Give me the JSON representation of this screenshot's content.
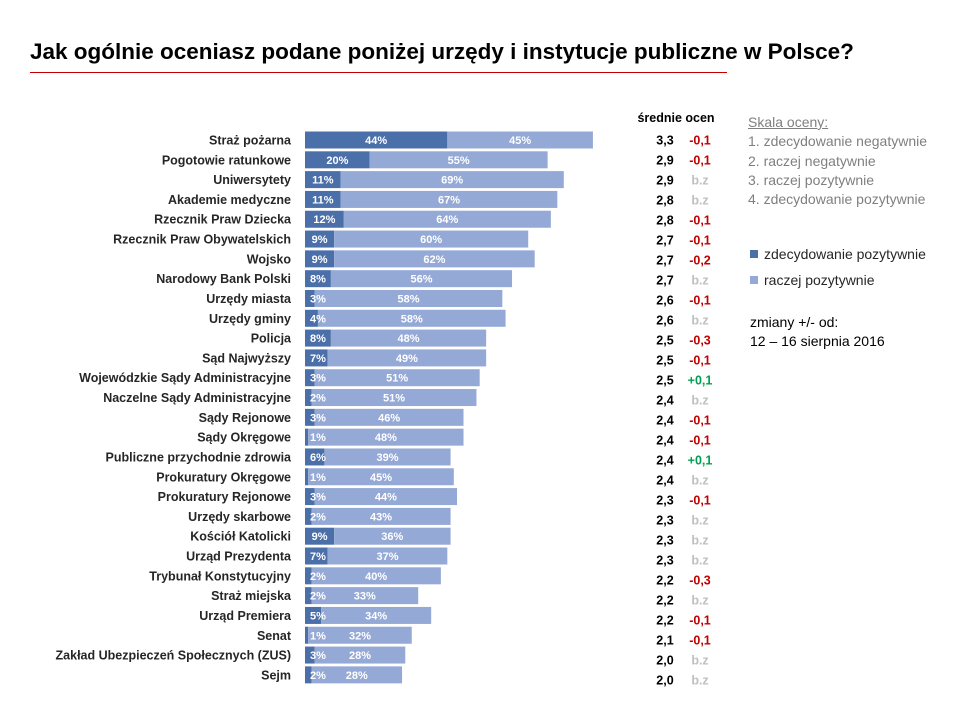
{
  "colors": {
    "title_underline": "#c00000",
    "change_negative": "#c00000",
    "change_positive": "#00a050",
    "change_unchanged": "#c0c0c0"
  },
  "scale": {
    "heading": "Skala oceny:",
    "items": [
      "1. zdecydowanie negatywnie",
      "2. raczej negatywnie",
      "3. raczej pozytywnie",
      "4. zdecydowanie pozytywnie"
    ]
  },
  "changes_note": {
    "label": "zmiany +/- od:",
    "date": "12 – 16 sierpnia 2016"
  },
  "chart_data": {
    "type": "bar",
    "orientation": "horizontal",
    "stacked": true,
    "title": "Jak ogólnie oceniasz podane poniżej urzędy i instytucje publiczne w Polsce?",
    "grid": false,
    "legend_position": "right",
    "value_suffix": "%",
    "categories": [
      "Straż pożarna",
      "Pogotowie ratunkowe",
      "Uniwersytety",
      "Akademie medyczne",
      "Rzecznik Praw Dziecka",
      "Rzecznik Praw Obywatelskich",
      "Wojsko",
      "Narodowy Bank Polski",
      "Urzędy miasta",
      "Urzędy gminy",
      "Policja",
      "Sąd Najwyższy",
      "Wojewódzkie Sądy Administracyjne",
      "Naczelne Sądy Administracyjne",
      "Sądy Rejonowe",
      "Sądy Okręgowe",
      "Publiczne przychodnie zdrowia",
      "Prokuratury Okręgowe",
      "Prokuratury Rejonowe",
      "Urzędy skarbowe",
      "Kościół Katolicki",
      "Urząd Prezydenta",
      "Trybunał Konstytucyjny",
      "Straż miejska",
      "Urząd Premiera",
      "Senat",
      "Zakład Ubezpieczeń Społecznych (ZUS)",
      "Sejm"
    ],
    "series": [
      {
        "name": "zdecydowanie pozytywnie",
        "color": "#4b6fa9",
        "values": [
          44,
          20,
          11,
          11,
          12,
          9,
          9,
          8,
          3,
          4,
          8,
          7,
          3,
          2,
          3,
          1,
          6,
          1,
          3,
          2,
          9,
          7,
          2,
          2,
          5,
          1,
          3,
          2
        ]
      },
      {
        "name": "raczej pozytywnie",
        "color": "#95a9d6",
        "values": [
          45,
          55,
          69,
          67,
          64,
          60,
          62,
          56,
          58,
          58,
          48,
          49,
          51,
          51,
          46,
          48,
          39,
          45,
          44,
          43,
          36,
          37,
          40,
          33,
          34,
          32,
          28,
          28
        ]
      }
    ],
    "mean_header": "średnie ocen",
    "means": [
      "3,3",
      "2,9",
      "2,9",
      "2,8",
      "2,8",
      "2,7",
      "2,7",
      "2,7",
      "2,6",
      "2,6",
      "2,5",
      "2,5",
      "2,5",
      "2,4",
      "2,4",
      "2,4",
      "2,4",
      "2,4",
      "2,3",
      "2,3",
      "2,3",
      "2,3",
      "2,2",
      "2,2",
      "2,2",
      "2,1",
      "2,0",
      "2,0"
    ],
    "changes": [
      "-0,1",
      "-0,1",
      "b.z",
      "b.z",
      "-0,1",
      "-0,1",
      "-0,2",
      "b.z",
      "-0,1",
      "b.z",
      "-0,3",
      "-0,1",
      "+0,1",
      "b.z",
      "-0,1",
      "-0,1",
      "+0,1",
      "b.z",
      "-0,1",
      "b.z",
      "b.z",
      "b.z",
      "-0,3",
      "b.z",
      "-0,1",
      "-0,1",
      "b.z",
      "b.z"
    ]
  }
}
